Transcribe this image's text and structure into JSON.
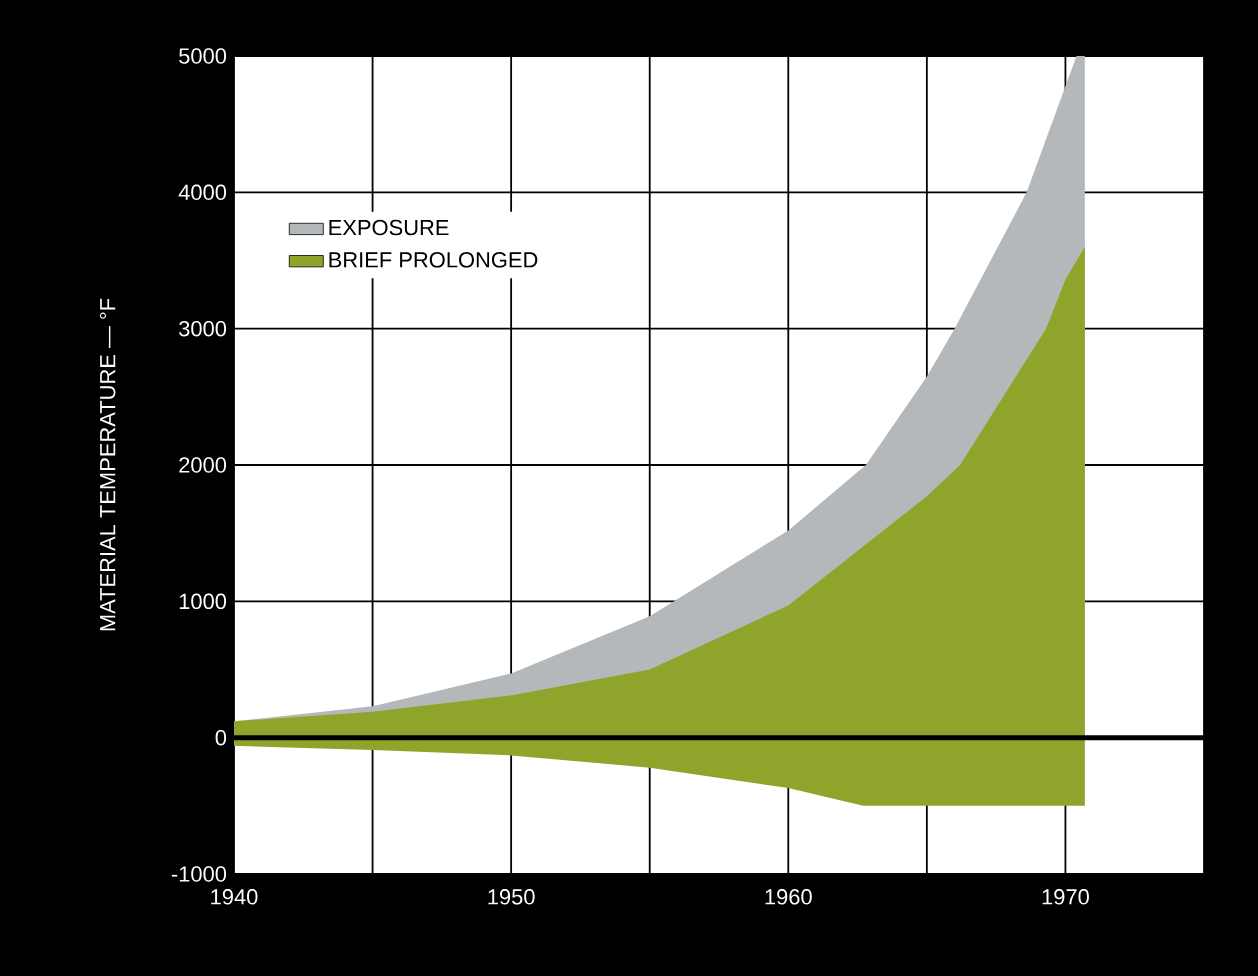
{
  "chart_data": {
    "type": "area",
    "ylabel": "MATERIAL TEMPERATURE — °F",
    "xlim": [
      1940,
      1975
    ],
    "ylim": [
      -1000,
      5000
    ],
    "xticks": [
      1940,
      {
        "value": 1945,
        "label": null
      },
      1950,
      {
        "value": 1955,
        "label": null
      },
      1960,
      {
        "value": 1965,
        "label": null
      },
      1970,
      {
        "value": 1975,
        "label": null
      }
    ],
    "yticks": [
      -1000,
      0,
      1000,
      2000,
      3000,
      4000,
      5000
    ],
    "grid": true,
    "legend": "top left",
    "ref_lines": [
      {
        "axis": "y",
        "value": 0,
        "color": "#000000"
      }
    ],
    "series": [
      {
        "name": "EXPOSURE",
        "color": "#b4b8ba",
        "x": [
          1940,
          1945,
          1950,
          1955,
          1960,
          1962.8,
          1965,
          1966,
          1968.6,
          1970.4,
          1970.7
        ],
        "values": [
          120,
          230,
          470,
          890,
          1520,
          2000,
          2650,
          3000,
          4000,
          5000,
          5000
        ]
      },
      {
        "name": "BRIEF PROLONGED",
        "color": "#8fa42b",
        "x": [
          1940,
          1945,
          1950,
          1955,
          1960,
          1965,
          1966.2,
          1969.3,
          1970,
          1970.7
        ],
        "values": [
          120,
          190,
          310,
          500,
          970,
          1770,
          2000,
          3000,
          3360,
          3600
        ]
      },
      {
        "color": "#8fa42b",
        "x": [
          1940,
          1945,
          1950,
          1955,
          1960,
          1962.7,
          1970.7
        ],
        "values": [
          -60,
          -90,
          -130,
          -220,
          -370,
          -500,
          -500
        ]
      }
    ]
  }
}
